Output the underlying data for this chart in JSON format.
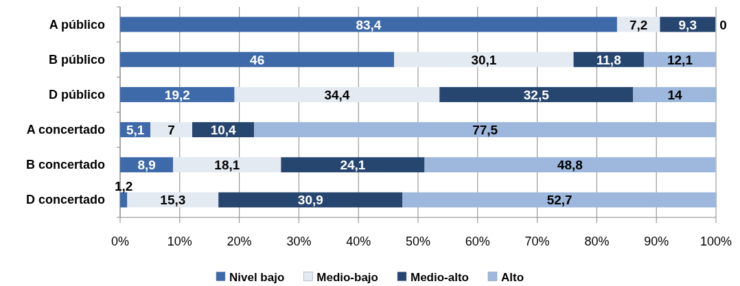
{
  "chart_data": {
    "type": "bar",
    "orientation": "horizontal",
    "stacked": true,
    "categories": [
      "A público",
      "B público",
      "D público",
      "A concertado",
      "B concertado",
      "D concertado"
    ],
    "series": [
      {
        "name": "Nivel bajo",
        "color": "#3e6aa9",
        "values": [
          83.4,
          46,
          19.2,
          5.1,
          8.9,
          1.2
        ],
        "value_labels": [
          "83,4",
          "46",
          "19,2",
          "5,1",
          "8,9",
          "1,2"
        ]
      },
      {
        "name": "Medio-bajo",
        "color": "#e4eaf2",
        "values": [
          7.2,
          30.1,
          34.4,
          7,
          18.1,
          15.3
        ],
        "value_labels": [
          "7,2",
          "30,1",
          "34,4",
          "7",
          "18,1",
          "15,3"
        ]
      },
      {
        "name": "Medio-alto",
        "color": "#26466f",
        "values": [
          9.3,
          11.8,
          32.5,
          10.4,
          24.1,
          30.9
        ],
        "value_labels": [
          "9,3",
          "11,8",
          "32,5",
          "10,4",
          "24,1",
          "30,9"
        ]
      },
      {
        "name": "Alto",
        "color": "#9db8dc",
        "values": [
          0,
          12.1,
          14,
          77.5,
          48.8,
          52.7
        ],
        "value_labels": [
          "0",
          "12,1",
          "14",
          "77,5",
          "48,8",
          "52,7"
        ]
      }
    ],
    "xlim": [
      0,
      100
    ],
    "xticks": [
      {
        "value": 0,
        "label": "0%"
      },
      {
        "value": 10,
        "label": "10%"
      },
      {
        "value": 20,
        "label": "20%"
      },
      {
        "value": 30,
        "label": "30%"
      },
      {
        "value": 40,
        "label": "40%"
      },
      {
        "value": 50,
        "label": "50%"
      },
      {
        "value": 60,
        "label": "60%"
      },
      {
        "value": 70,
        "label": "70%"
      },
      {
        "value": 80,
        "label": "80%"
      },
      {
        "value": 90,
        "label": "90%"
      },
      {
        "value": 100,
        "label": "100%"
      }
    ],
    "grid": "x",
    "legend": "bottom"
  }
}
